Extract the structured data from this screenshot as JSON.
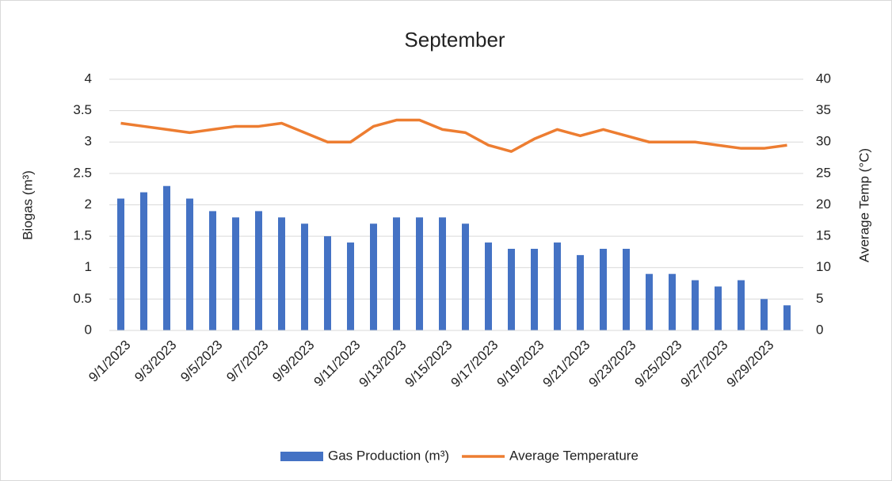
{
  "chart_data": {
    "type": "bar_line",
    "title": "September",
    "categories": [
      "9/1/2023",
      null,
      "9/3/2023",
      null,
      "9/5/2023",
      null,
      "9/7/2023",
      null,
      "9/9/2023",
      null,
      "9/11/2023",
      null,
      "9/13/2023",
      null,
      "9/15/2023",
      null,
      "9/17/2023",
      null,
      "9/19/2023",
      null,
      "9/21/2023",
      null,
      "9/23/2023",
      null,
      "9/25/2023",
      null,
      "9/27/2023",
      null,
      "9/29/2023",
      null
    ],
    "series": [
      {
        "name": "Gas Production (m³)",
        "type": "bar",
        "color": "#4472c4",
        "axis": "y",
        "values": [
          2.1,
          2.2,
          2.3,
          2.1,
          1.9,
          1.8,
          1.9,
          1.8,
          1.7,
          1.5,
          1.4,
          1.7,
          1.8,
          1.8,
          1.8,
          1.7,
          1.4,
          1.3,
          1.3,
          1.4,
          1.2,
          1.3,
          1.3,
          0.9,
          0.9,
          0.8,
          0.7,
          0.8,
          0.5,
          0.4
        ]
      },
      {
        "name": "Average Temperature",
        "type": "line",
        "color": "#ed7d31",
        "axis": "y2",
        "values": [
          33,
          32.5,
          32,
          31.5,
          32,
          32.5,
          32.5,
          33,
          31.5,
          30,
          30,
          32.5,
          33.5,
          33.5,
          32,
          31.5,
          29.5,
          28.5,
          30.5,
          32,
          31,
          32,
          31,
          30,
          30,
          30,
          29.5,
          29,
          29,
          29.5
        ]
      }
    ],
    "ylabel": "Biogas (m³)",
    "y2label": "Average Temp (°C)",
    "ylim": [
      0,
      4
    ],
    "yticks": [
      0,
      0.5,
      1,
      1.5,
      2,
      2.5,
      3,
      3.5,
      4
    ],
    "y2lim": [
      0,
      40
    ],
    "y2ticks": [
      0,
      5,
      10,
      15,
      20,
      25,
      30,
      35,
      40
    ],
    "grid": true,
    "legend": "bottom"
  }
}
